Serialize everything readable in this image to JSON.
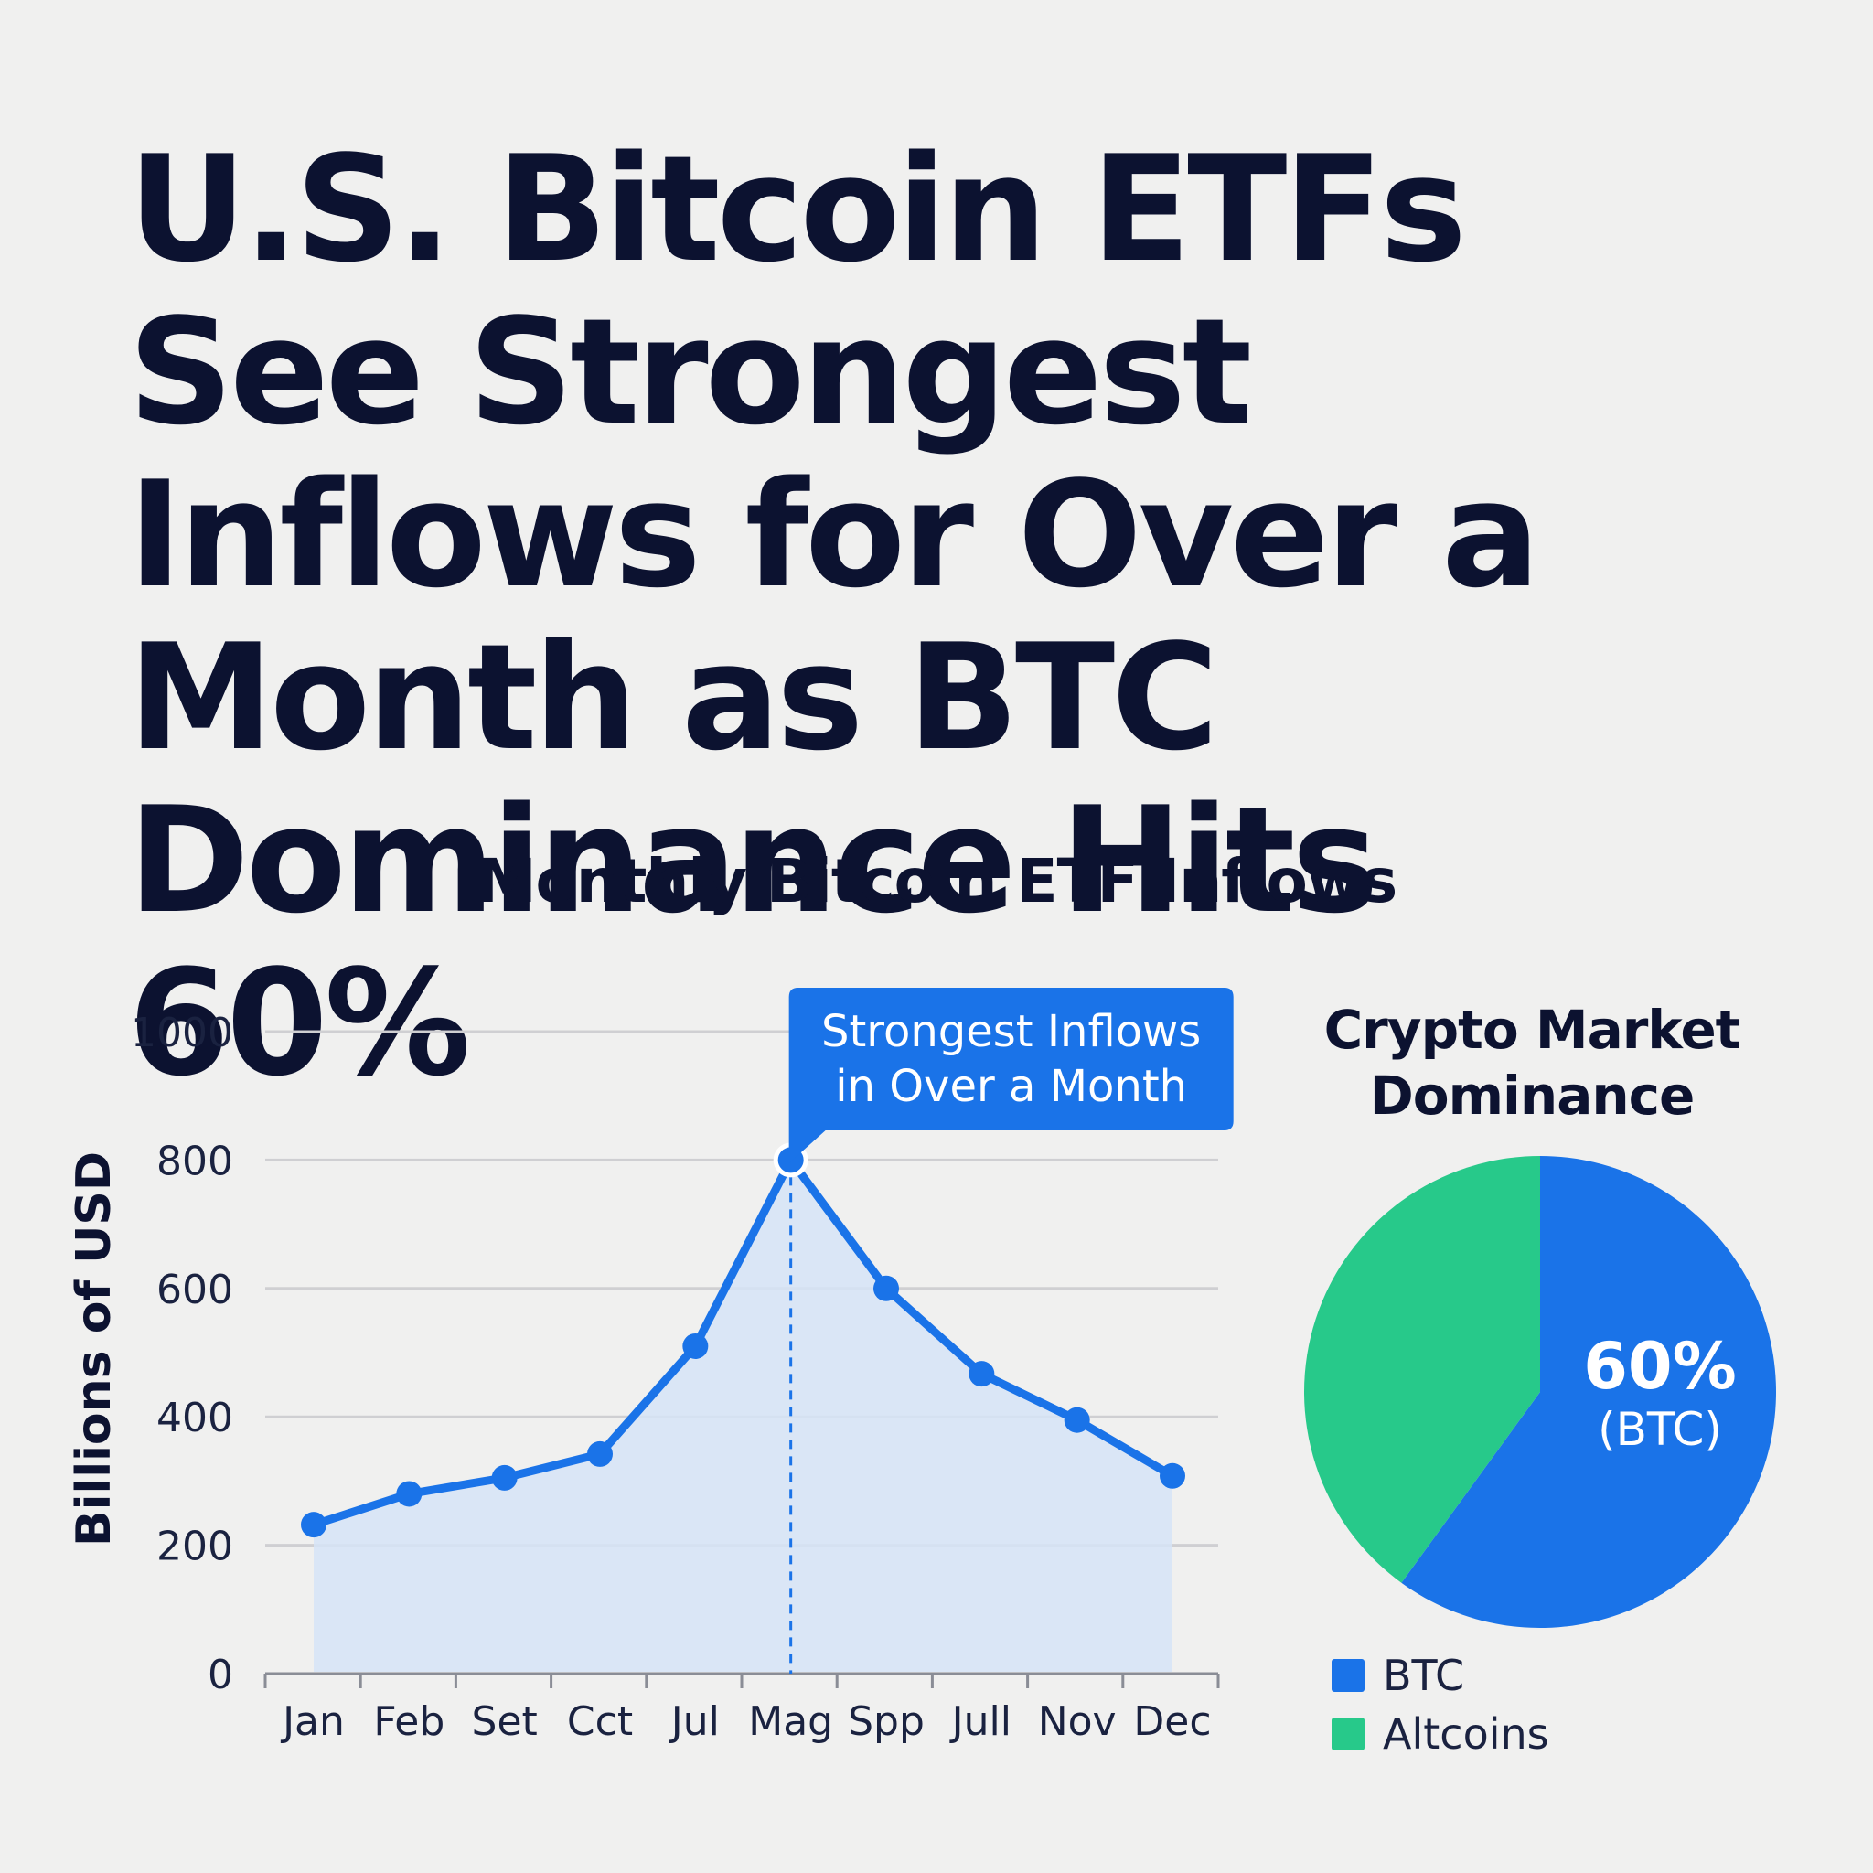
{
  "headline": "U.S. Bitcoin ETFs See Strongest Inflows for Over a Month as BTC Dominance Hits 60%",
  "colors": {
    "background": "#f0f0ef",
    "text": "#0c1230",
    "btc_blue": "#1a73e8",
    "altcoin_green": "#27c98a",
    "area_fill": "#d6e4f7",
    "grid": "#cfcfd2"
  },
  "chart_data": [
    {
      "type": "line",
      "title": "Monthly Bitcoin ETF Inflows",
      "ylabel": "Billions of USD",
      "xlabel": "",
      "categories": [
        "Jan",
        "Feb",
        "Set",
        "Cct",
        "Jul",
        "Mag",
        "Spp",
        "Jull",
        "Nov",
        "Dec"
      ],
      "values": [
        232,
        280,
        305,
        342,
        510,
        800,
        600,
        467,
        395,
        308
      ],
      "ylim": [
        0,
        1000
      ],
      "yticks": [
        0,
        200,
        400,
        600,
        800,
        1000
      ],
      "grid": true,
      "area_fill": true,
      "annotation": {
        "category": "Mag",
        "lines": [
          "Strongest Inflows",
          "in Over a Month"
        ]
      }
    },
    {
      "type": "pie",
      "title": "Crypto Market Dominance",
      "slices": [
        {
          "name": "BTC",
          "value": 60,
          "color": "#1a73e8"
        },
        {
          "name": "Altcoins",
          "value": 40,
          "color": "#27c98a"
        }
      ],
      "slice_label": {
        "value": "60%",
        "sub": "(BTC)"
      },
      "legend": [
        "BTC",
        "Altcoins"
      ],
      "legend_position": "bottom-left"
    }
  ]
}
